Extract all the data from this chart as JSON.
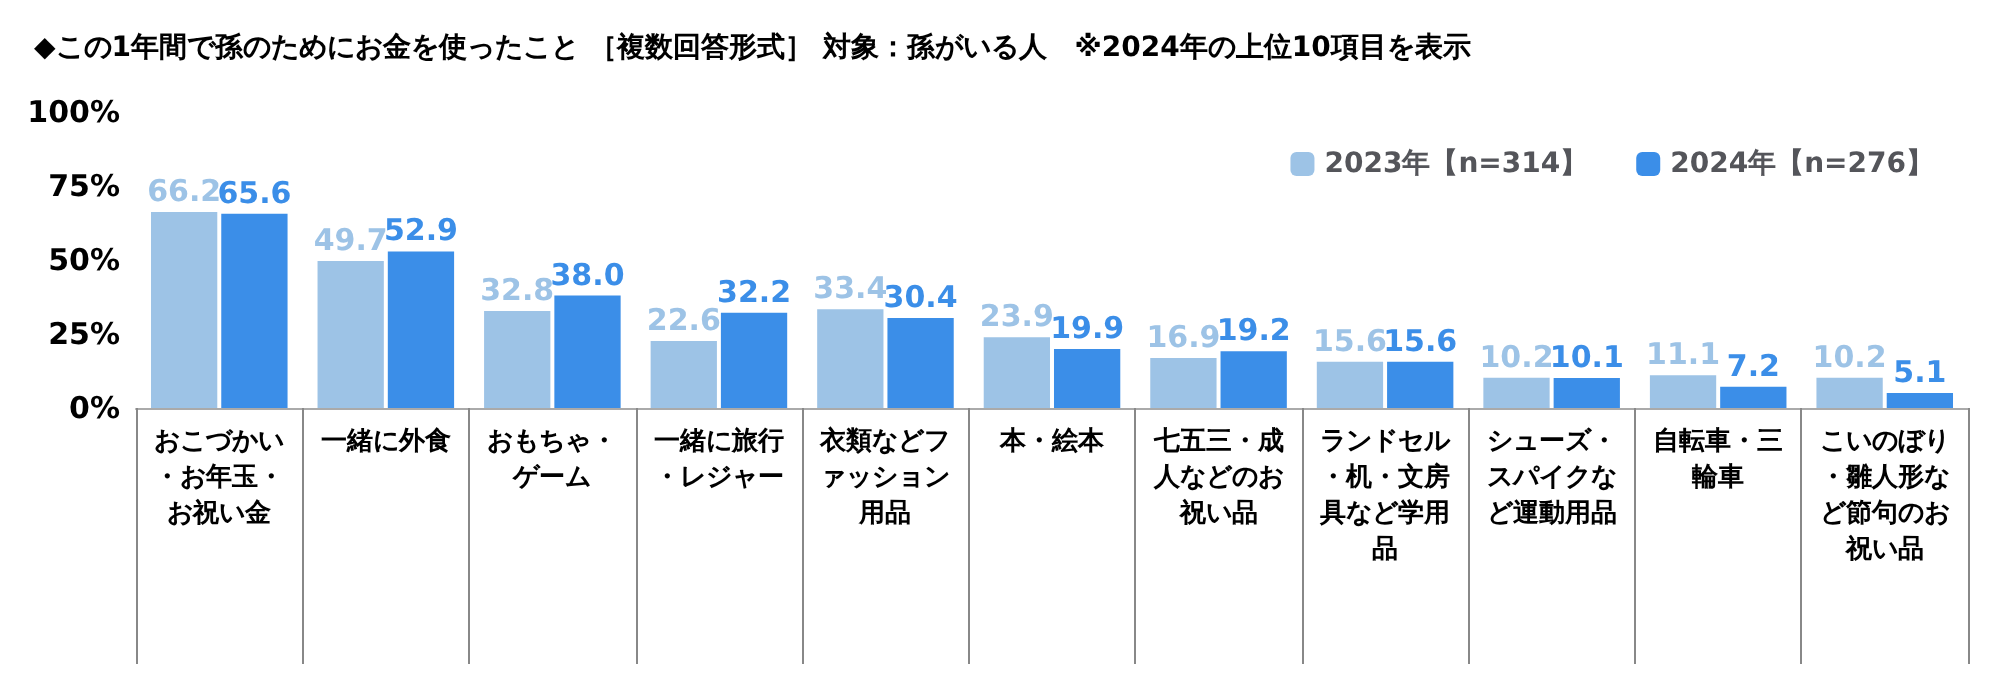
{
  "chart_data": {
    "type": "bar",
    "title": "◆この1年間で孫のためにお金を使ったこと ［複数回答形式］ 対象：孫がいる人　※2024年の上位10項目を表示",
    "categories": [
      "おこづかい・お年玉・お祝い金",
      "一緒に外食",
      "おもちゃ・ゲーム",
      "一緒に旅行・レジャー",
      "衣類などファッション用品",
      "本・絵本",
      "七五三・成人などのお祝い品",
      "ランドセル・机・文房具など学用品",
      "シューズ・スパイクなど運動用品",
      "自転車・三輪車",
      "こいのぼり・雛人形など節句のお祝い品"
    ],
    "series": [
      {
        "name": "2023年【n=314】",
        "color": "#9dc3e6",
        "values": [
          66.2,
          49.7,
          32.8,
          22.6,
          33.4,
          23.9,
          16.9,
          15.6,
          10.2,
          11.1,
          10.2
        ],
        "value_labels": [
          "66.2",
          "49.7",
          "32.8",
          "22.6",
          "33.4",
          "23.9",
          "16.9",
          "15.6",
          "10.2",
          "11.1",
          "10.2"
        ]
      },
      {
        "name": "2024年【n=276】",
        "color": "#3b8ee8",
        "values": [
          65.6,
          52.9,
          38.0,
          32.2,
          30.4,
          19.9,
          19.2,
          15.6,
          10.1,
          7.2,
          5.1
        ],
        "value_labels": [
          "65.6",
          "52.9",
          "38.0",
          "32.2",
          "30.4",
          "19.9",
          "19.2",
          "15.6",
          "10.1",
          "7.2",
          "5.1"
        ]
      }
    ],
    "ylim": [
      0,
      100
    ],
    "yticks": [
      {
        "value": 0,
        "label": "0%"
      },
      {
        "value": 25,
        "label": "25%"
      },
      {
        "value": 50,
        "label": "50%"
      },
      {
        "value": 75,
        "label": "75%"
      },
      {
        "value": 100,
        "label": "100%"
      }
    ],
    "legend": "top right",
    "grid": false
  }
}
